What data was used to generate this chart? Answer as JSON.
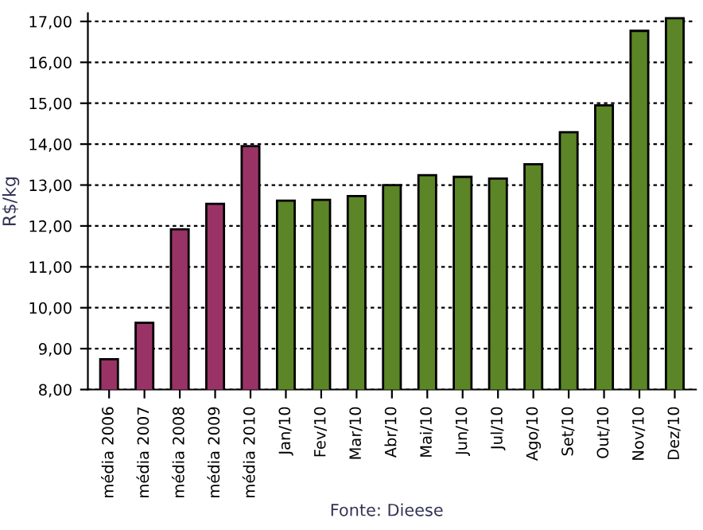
{
  "chart_data": {
    "type": "bar",
    "ylabel": "R$/kg",
    "categories": [
      "média 2006",
      "média 2007",
      "média 2008",
      "média 2009",
      "média 2010",
      "Jan/10",
      "Fev/10",
      "Mar/10",
      "Abr/10",
      "Mai/10",
      "Jun/10",
      "Jul/10",
      "Ago/10",
      "Set/10",
      "Out/10",
      "Nov/10",
      "Dez/10"
    ],
    "values": [
      8.74,
      9.63,
      11.92,
      12.54,
      13.95,
      12.62,
      12.64,
      12.73,
      13.0,
      13.24,
      13.2,
      13.16,
      13.51,
      14.29,
      14.95,
      16.77,
      17.08
    ],
    "colors": [
      "#993366",
      "#993366",
      "#993366",
      "#993366",
      "#993366",
      "#5b8526",
      "#5b8526",
      "#5b8526",
      "#5b8526",
      "#5b8526",
      "#5b8526",
      "#5b8526",
      "#5b8526",
      "#5b8526",
      "#5b8526",
      "#5b8526",
      "#5b8526"
    ],
    "ylim": [
      8,
      17.2
    ],
    "yticks": [
      {
        "value": 8,
        "label": "8,00"
      },
      {
        "value": 9,
        "label": "9,00"
      },
      {
        "value": 10,
        "label": "10,00"
      },
      {
        "value": 11,
        "label": "11,00"
      },
      {
        "value": 12,
        "label": "12,00"
      },
      {
        "value": 13,
        "label": "13,00"
      },
      {
        "value": 14,
        "label": "14,00"
      },
      {
        "value": 15,
        "label": "15,00"
      },
      {
        "value": 16,
        "label": "16,00"
      },
      {
        "value": 17,
        "label": "17,00"
      }
    ],
    "grid": "y",
    "annotations": [
      "Fonte: Dieese"
    ]
  }
}
